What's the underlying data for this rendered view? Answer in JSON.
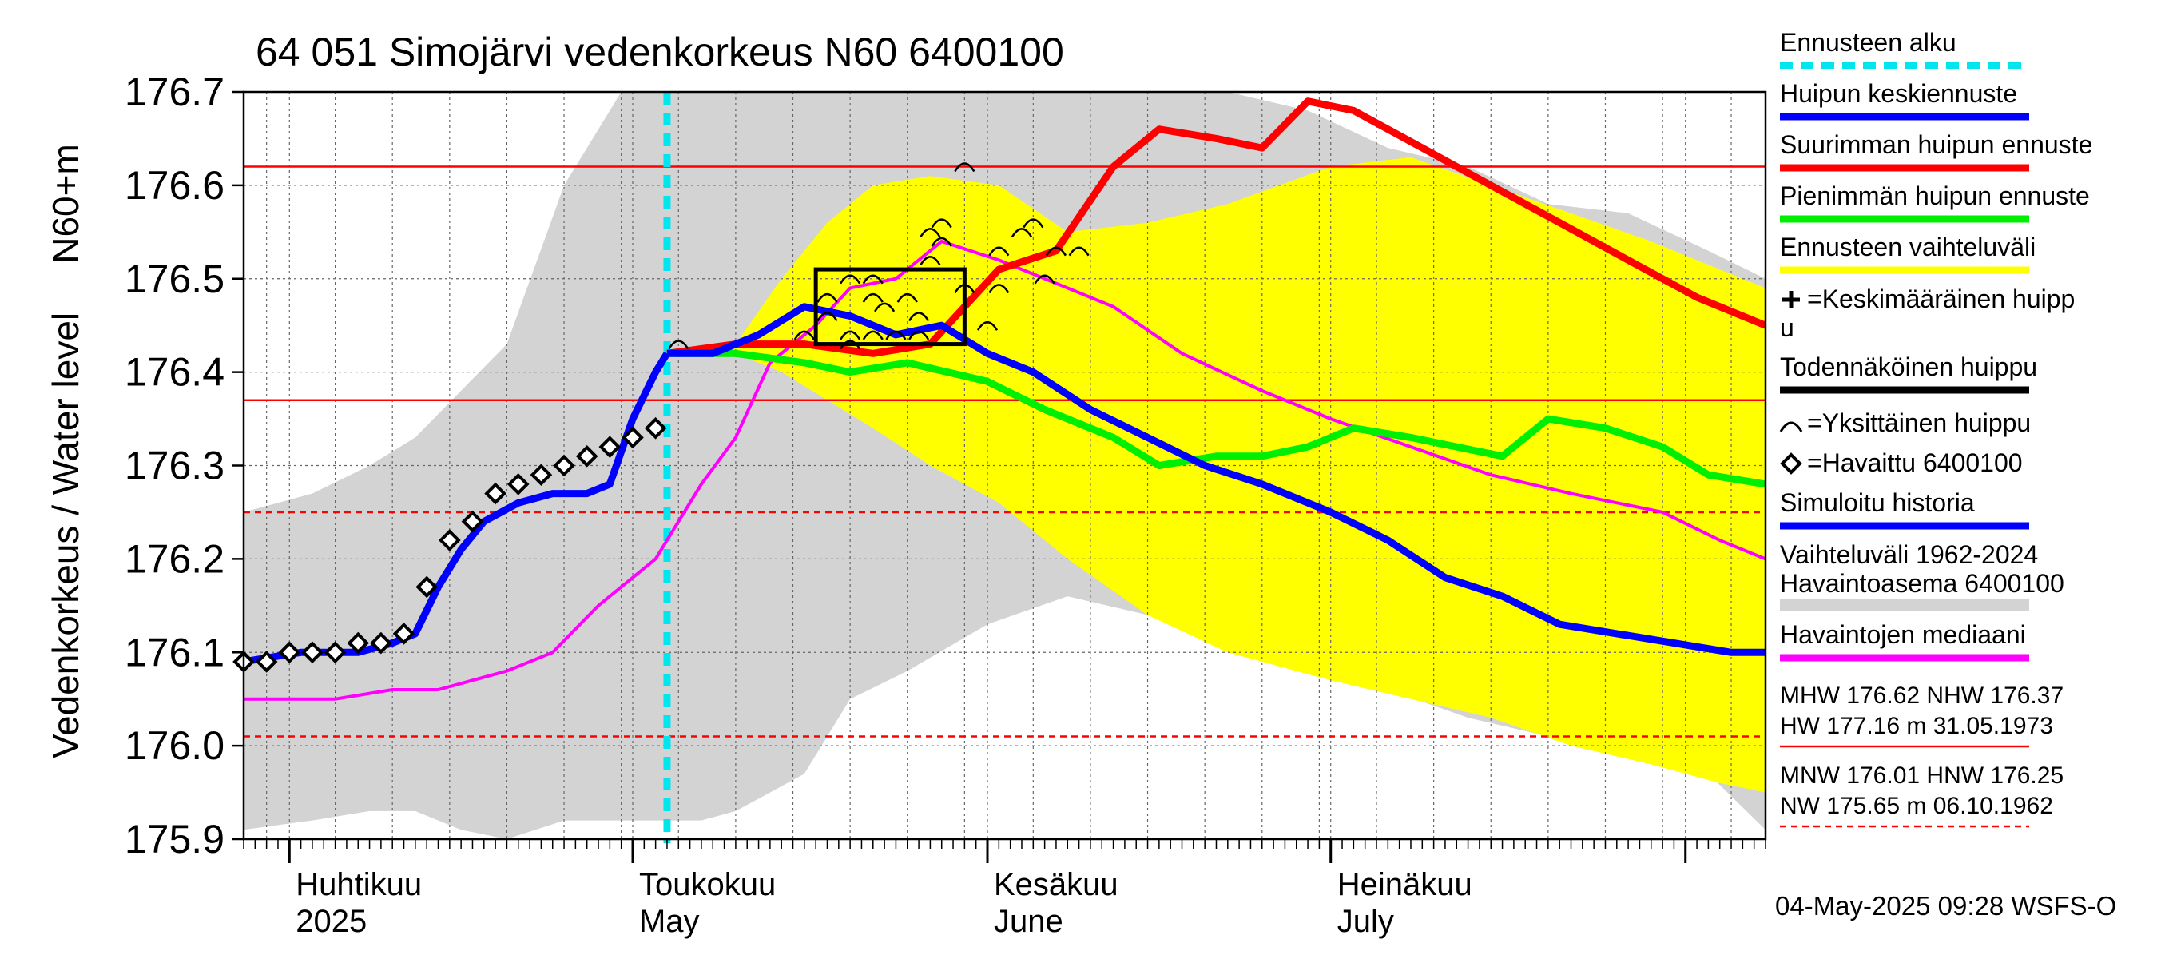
{
  "chart_data": {
    "type": "line",
    "title": "64 051 Simojärvi vedenkorkeus N60 6400100",
    "ylabel_main": "Vedenkorkeus / Water level",
    "ylabel_unit": "N60+m",
    "ylim": [
      175.9,
      176.7
    ],
    "y_ticks": [
      "175.9",
      "176.0",
      "176.1",
      "176.2",
      "176.3",
      "176.4",
      "176.5",
      "176.6",
      "176.7"
    ],
    "x_start_date": "2025-03-28",
    "x_end_date": "2025-08-08",
    "month_labels": [
      {
        "date": "2025-04-01",
        "fi": "Huhtikuu",
        "en": "2025"
      },
      {
        "date": "2025-05-01",
        "fi": "Toukokuu",
        "en": "May"
      },
      {
        "date": "2025-06-01",
        "fi": "Kesäkuu",
        "en": "June"
      },
      {
        "date": "2025-07-01",
        "fi": "Heinäkuu",
        "en": "July"
      }
    ],
    "forecast_start": "2025-05-04",
    "reference_lines": {
      "MHW": 176.62,
      "NHW": 176.37,
      "MNW": 176.01,
      "HNW": 176.25
    },
    "legend": [
      {
        "label": "Ennusteen alku",
        "color": "#00e5ee",
        "style": "dashed"
      },
      {
        "label": "Huipun keskiennuste",
        "color": "#0000ff",
        "style": "solid"
      },
      {
        "label": "Suurimman huipun ennuste",
        "color": "#ff0000",
        "style": "solid"
      },
      {
        "label": "Pienimmän huipun ennuste",
        "color": "#00ee00",
        "style": "solid"
      },
      {
        "label": "Ennusteen vaihteluväli",
        "color": "#ffff00",
        "style": "solid"
      },
      {
        "label": "=Keskimääräinen huipp",
        "label2": "u",
        "color": "#000000",
        "style": "plus"
      },
      {
        "label": "Todennäköinen huippu",
        "color": "#000000",
        "style": "solid"
      },
      {
        "label": "=Yksittäinen huippu",
        "color": "#000000",
        "style": "arc"
      },
      {
        "label": "=Havaittu 6400100",
        "color": "#000000",
        "style": "diamond"
      },
      {
        "label": "Simuloitu historia",
        "color": "#0000ff",
        "style": "solid"
      },
      {
        "label": "Vaihteluväli 1962-2024",
        "label2": " Havaintoasema 6400100",
        "color": "#d3d3d3",
        "style": "solid"
      },
      {
        "label": "Havaintojen mediaani",
        "color": "#ff00ff",
        "style": "solid"
      }
    ],
    "stats": [
      {
        "line1": "MHW 176.62 NHW 176.37",
        "line2": "HW 177.16 m 31.05.1973",
        "color": "#ff0000",
        "style": "solid"
      },
      {
        "line1": "MNW 176.01 HNW 176.25",
        "line2": "NW 175.65 m 06.10.1962",
        "color": "#ff0000",
        "style": "dashed"
      }
    ],
    "footer": "04-May-2025 09:28 WSFS-O",
    "series": {
      "observed": {
        "name": "Havaittu 6400100",
        "x": [
          "2025-03-28",
          "2025-03-30",
          "2025-04-01",
          "2025-04-03",
          "2025-04-05",
          "2025-04-07",
          "2025-04-09",
          "2025-04-11",
          "2025-04-13",
          "2025-04-15",
          "2025-04-17",
          "2025-04-19",
          "2025-04-21",
          "2025-04-23",
          "2025-04-25",
          "2025-04-27",
          "2025-04-29",
          "2025-05-01",
          "2025-05-03"
        ],
        "y": [
          176.09,
          176.09,
          176.1,
          176.1,
          176.1,
          176.11,
          176.11,
          176.12,
          176.17,
          176.22,
          176.24,
          176.27,
          176.28,
          176.29,
          176.3,
          176.31,
          176.32,
          176.33,
          176.34
        ]
      },
      "simulated": {
        "name": "Simuloitu historia",
        "x": [
          "2025-03-28",
          "2025-04-02",
          "2025-04-07",
          "2025-04-10",
          "2025-04-12",
          "2025-04-14",
          "2025-04-16",
          "2025-04-18",
          "2025-04-21",
          "2025-04-24",
          "2025-04-27",
          "2025-04-29",
          "2025-05-01",
          "2025-05-03",
          "2025-05-04"
        ],
        "y": [
          176.09,
          176.1,
          176.1,
          176.11,
          176.12,
          176.17,
          176.21,
          176.24,
          176.26,
          176.27,
          176.27,
          176.28,
          176.35,
          176.4,
          176.42
        ]
      },
      "mean_forecast": {
        "name": "Huipun keskiennuste",
        "x": [
          "2025-05-04",
          "2025-05-08",
          "2025-05-12",
          "2025-05-16",
          "2025-05-20",
          "2025-05-24",
          "2025-05-28",
          "2025-06-01",
          "2025-06-05",
          "2025-06-10",
          "2025-06-15",
          "2025-06-20",
          "2025-06-25",
          "2025-07-01",
          "2025-07-06",
          "2025-07-11",
          "2025-07-16",
          "2025-07-21",
          "2025-07-26",
          "2025-07-31",
          "2025-08-05",
          "2025-08-08"
        ],
        "y": [
          176.42,
          176.42,
          176.44,
          176.47,
          176.46,
          176.44,
          176.45,
          176.42,
          176.4,
          176.36,
          176.33,
          176.3,
          176.28,
          176.25,
          176.22,
          176.18,
          176.16,
          176.13,
          176.12,
          176.11,
          176.1,
          176.1
        ]
      },
      "max_forecast": {
        "name": "Suurimman huipun ennuste",
        "x": [
          "2025-05-04",
          "2025-05-10",
          "2025-05-16",
          "2025-05-22",
          "2025-05-27",
          "2025-06-02",
          "2025-06-07",
          "2025-06-12",
          "2025-06-16",
          "2025-06-21",
          "2025-06-25",
          "2025-06-29",
          "2025-07-03",
          "2025-07-09",
          "2025-07-15",
          "2025-07-21",
          "2025-07-27",
          "2025-08-02",
          "2025-08-08"
        ],
        "y": [
          176.42,
          176.43,
          176.43,
          176.42,
          176.43,
          176.51,
          176.53,
          176.62,
          176.66,
          176.65,
          176.64,
          176.69,
          176.68,
          176.64,
          176.6,
          176.56,
          176.52,
          176.48,
          176.45
        ]
      },
      "min_forecast": {
        "name": "Pienimmän huipun ennuste",
        "x": [
          "2025-05-04",
          "2025-05-10",
          "2025-05-16",
          "2025-05-20",
          "2025-05-25",
          "2025-06-01",
          "2025-06-06",
          "2025-06-12",
          "2025-06-16",
          "2025-06-21",
          "2025-06-25",
          "2025-06-29",
          "2025-07-03",
          "2025-07-08",
          "2025-07-12",
          "2025-07-16",
          "2025-07-20",
          "2025-07-25",
          "2025-07-30",
          "2025-08-03",
          "2025-08-08"
        ],
        "y": [
          176.42,
          176.42,
          176.41,
          176.4,
          176.41,
          176.39,
          176.36,
          176.33,
          176.3,
          176.31,
          176.31,
          176.32,
          176.34,
          176.33,
          176.32,
          176.31,
          176.35,
          176.34,
          176.32,
          176.29,
          176.28
        ]
      },
      "median": {
        "name": "Havaintojen mediaani",
        "x": [
          "2025-03-28",
          "2025-04-05",
          "2025-04-10",
          "2025-04-14",
          "2025-04-20",
          "2025-04-24",
          "2025-04-28",
          "2025-05-03",
          "2025-05-07",
          "2025-05-10",
          "2025-05-13",
          "2025-05-17",
          "2025-05-20",
          "2025-05-24",
          "2025-05-28",
          "2025-06-02",
          "2025-06-06",
          "2025-06-12",
          "2025-06-18",
          "2025-06-25",
          "2025-07-01",
          "2025-07-08",
          "2025-07-15",
          "2025-07-22",
          "2025-07-30",
          "2025-08-04",
          "2025-08-08"
        ],
        "y": [
          176.05,
          176.05,
          176.06,
          176.06,
          176.08,
          176.1,
          176.15,
          176.2,
          176.28,
          176.33,
          176.41,
          176.45,
          176.49,
          176.5,
          176.54,
          176.52,
          176.5,
          176.47,
          176.42,
          176.38,
          176.35,
          176.32,
          176.29,
          176.27,
          176.25,
          176.22,
          176.2
        ]
      },
      "forecast_band": {
        "name": "Ennusteen vaihteluväli",
        "x": [
          "2025-05-04",
          "2025-05-10",
          "2025-05-14",
          "2025-05-18",
          "2025-05-22",
          "2025-05-27",
          "2025-06-02",
          "2025-06-08",
          "2025-06-15",
          "2025-06-22",
          "2025-07-01",
          "2025-07-08",
          "2025-07-15",
          "2025-07-22",
          "2025-07-29",
          "2025-08-04",
          "2025-08-08"
        ],
        "upper": [
          176.42,
          176.43,
          176.5,
          176.56,
          176.6,
          176.61,
          176.6,
          176.55,
          176.56,
          176.58,
          176.62,
          176.63,
          176.6,
          176.57,
          176.54,
          176.51,
          176.49
        ],
        "lower": [
          176.42,
          176.42,
          176.4,
          176.37,
          176.34,
          176.3,
          176.26,
          176.2,
          176.14,
          176.1,
          176.07,
          176.05,
          176.03,
          176.0,
          175.98,
          175.96,
          175.95
        ]
      },
      "historical_band": {
        "name": "Vaihteluväli 1962-2024",
        "x": [
          "2025-03-28",
          "2025-04-03",
          "2025-04-08",
          "2025-04-12",
          "2025-04-16",
          "2025-04-20",
          "2025-04-25",
          "2025-04-30",
          "2025-05-04",
          "2025-05-07",
          "2025-05-10",
          "2025-05-13",
          "2025-05-16",
          "2025-05-20",
          "2025-05-25",
          "2025-06-01",
          "2025-06-08",
          "2025-06-15",
          "2025-06-22",
          "2025-06-29",
          "2025-07-06",
          "2025-07-13",
          "2025-07-20",
          "2025-07-27",
          "2025-08-03",
          "2025-08-08"
        ],
        "upper": [
          176.25,
          176.27,
          176.3,
          176.33,
          176.38,
          176.43,
          176.6,
          176.7,
          176.7,
          176.7,
          176.7,
          176.7,
          176.7,
          176.7,
          176.7,
          176.7,
          176.7,
          176.7,
          176.7,
          176.68,
          176.64,
          176.62,
          176.58,
          176.57,
          176.53,
          176.5
        ],
        "lower": [
          175.91,
          175.92,
          175.93,
          175.93,
          175.91,
          175.9,
          175.92,
          175.92,
          175.92,
          175.92,
          175.93,
          175.95,
          175.97,
          176.05,
          176.08,
          176.13,
          176.16,
          176.14,
          176.12,
          176.1,
          176.06,
          176.03,
          176.01,
          175.99,
          175.97,
          175.91
        ]
      },
      "single_peaks": {
        "name": "Yksittäinen huippu",
        "x": [
          "2025-05-05",
          "2025-05-16",
          "2025-05-18",
          "2025-05-20",
          "2025-05-22",
          "2025-05-25",
          "2025-05-27",
          "2025-05-28",
          "2025-05-20",
          "2025-05-22",
          "2025-05-23",
          "2025-05-26",
          "2025-05-28",
          "2025-05-30",
          "2025-06-01",
          "2025-06-02",
          "2025-06-05",
          "2025-06-07",
          "2025-06-09",
          "2025-05-22",
          "2025-05-26",
          "2025-05-30",
          "2025-06-02",
          "2025-05-18",
          "2025-05-20",
          "2025-05-24",
          "2025-05-27",
          "2025-06-06",
          "2025-06-04"
        ],
        "y": [
          176.43,
          176.44,
          176.48,
          176.5,
          176.5,
          176.48,
          176.55,
          176.56,
          176.44,
          176.44,
          176.47,
          176.46,
          176.54,
          176.49,
          176.45,
          176.53,
          176.56,
          176.53,
          176.53,
          176.48,
          176.44,
          176.62,
          176.49,
          176.46,
          176.43,
          176.44,
          176.52,
          176.5,
          176.55
        ]
      },
      "probable_peak_box": {
        "name": "Todennäköinen huippu",
        "x_from": "2025-05-17",
        "x_to": "2025-05-30",
        "y_from": 176.43,
        "y_to": 176.51
      }
    }
  }
}
